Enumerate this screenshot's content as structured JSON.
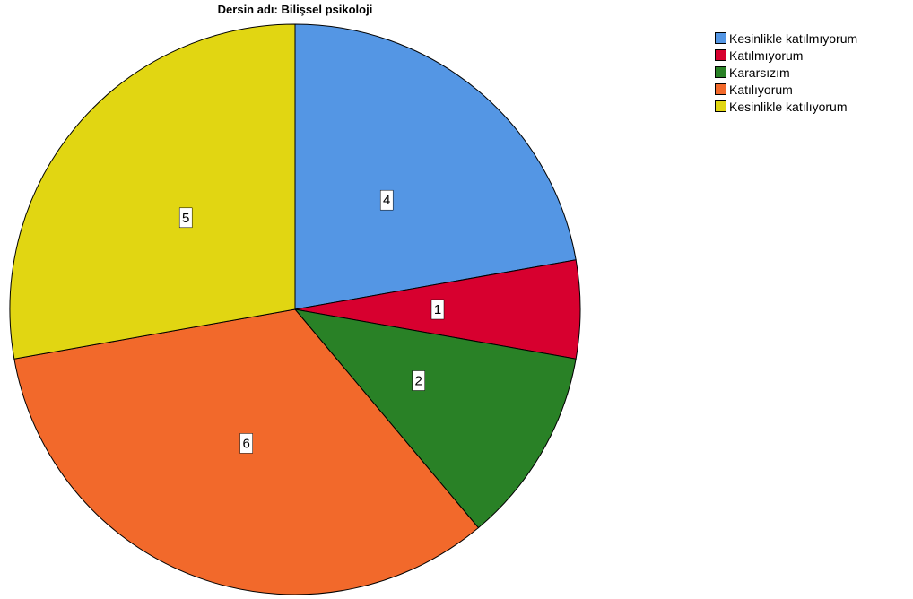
{
  "chart_data": {
    "type": "pie",
    "title": "Dersin adı: Bilişsel psikoloji",
    "categories": [
      "Kesinlikle katılmıyorum",
      "Katılmıyorum",
      "Kararsızım",
      "Katılıyorum",
      "Kesinlikle katılıyorum"
    ],
    "values": [
      4,
      1,
      2,
      6,
      5
    ],
    "colors": [
      "#5496e4",
      "#d7002f",
      "#298126",
      "#f2692b",
      "#e1d612"
    ],
    "start_angle_deg": 0,
    "direction": "clockwise",
    "data_labels": [
      "4",
      "1",
      "2",
      "6",
      "5"
    ],
    "legend_position": "top-right"
  },
  "legend": {
    "items": [
      {
        "label": "Kesinlikle katılmıyorum",
        "color": "#5496e4"
      },
      {
        "label": "Katılmıyorum",
        "color": "#d7002f"
      },
      {
        "label": "Kararsızım",
        "color": "#298126"
      },
      {
        "label": "Katılıyorum",
        "color": "#f2692b"
      },
      {
        "label": "Kesinlikle katılıyorum",
        "color": "#e1d612"
      }
    ]
  }
}
